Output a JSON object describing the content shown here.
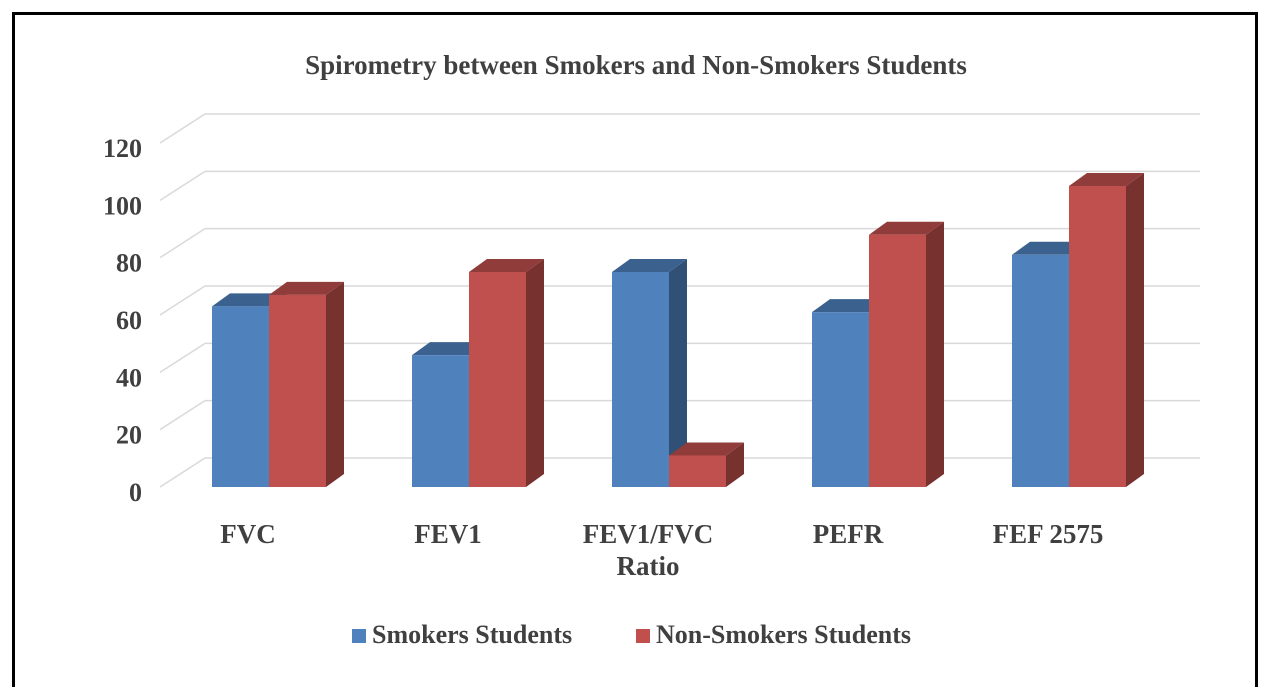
{
  "chart_data": {
    "type": "bar3d",
    "title": "Spirometry between Smokers and Non-Smokers Students",
    "categories": [
      "FVC",
      "FEV1",
      "FEV1/FVC Ratio",
      "PEFR",
      "FEF 2575"
    ],
    "series": [
      {
        "name": "Smokers Students",
        "color": "#4f81bd",
        "values": [
          63,
          46,
          75,
          61,
          81
        ]
      },
      {
        "name": "Non-Smokers Students",
        "color": "#c0504d",
        "values": [
          67,
          75,
          11,
          88,
          105
        ]
      }
    ],
    "ylim": [
      0,
      120
    ],
    "yticks": [
      0,
      20,
      40,
      60,
      80,
      100,
      120
    ],
    "grid": true,
    "legend": "bottom"
  }
}
